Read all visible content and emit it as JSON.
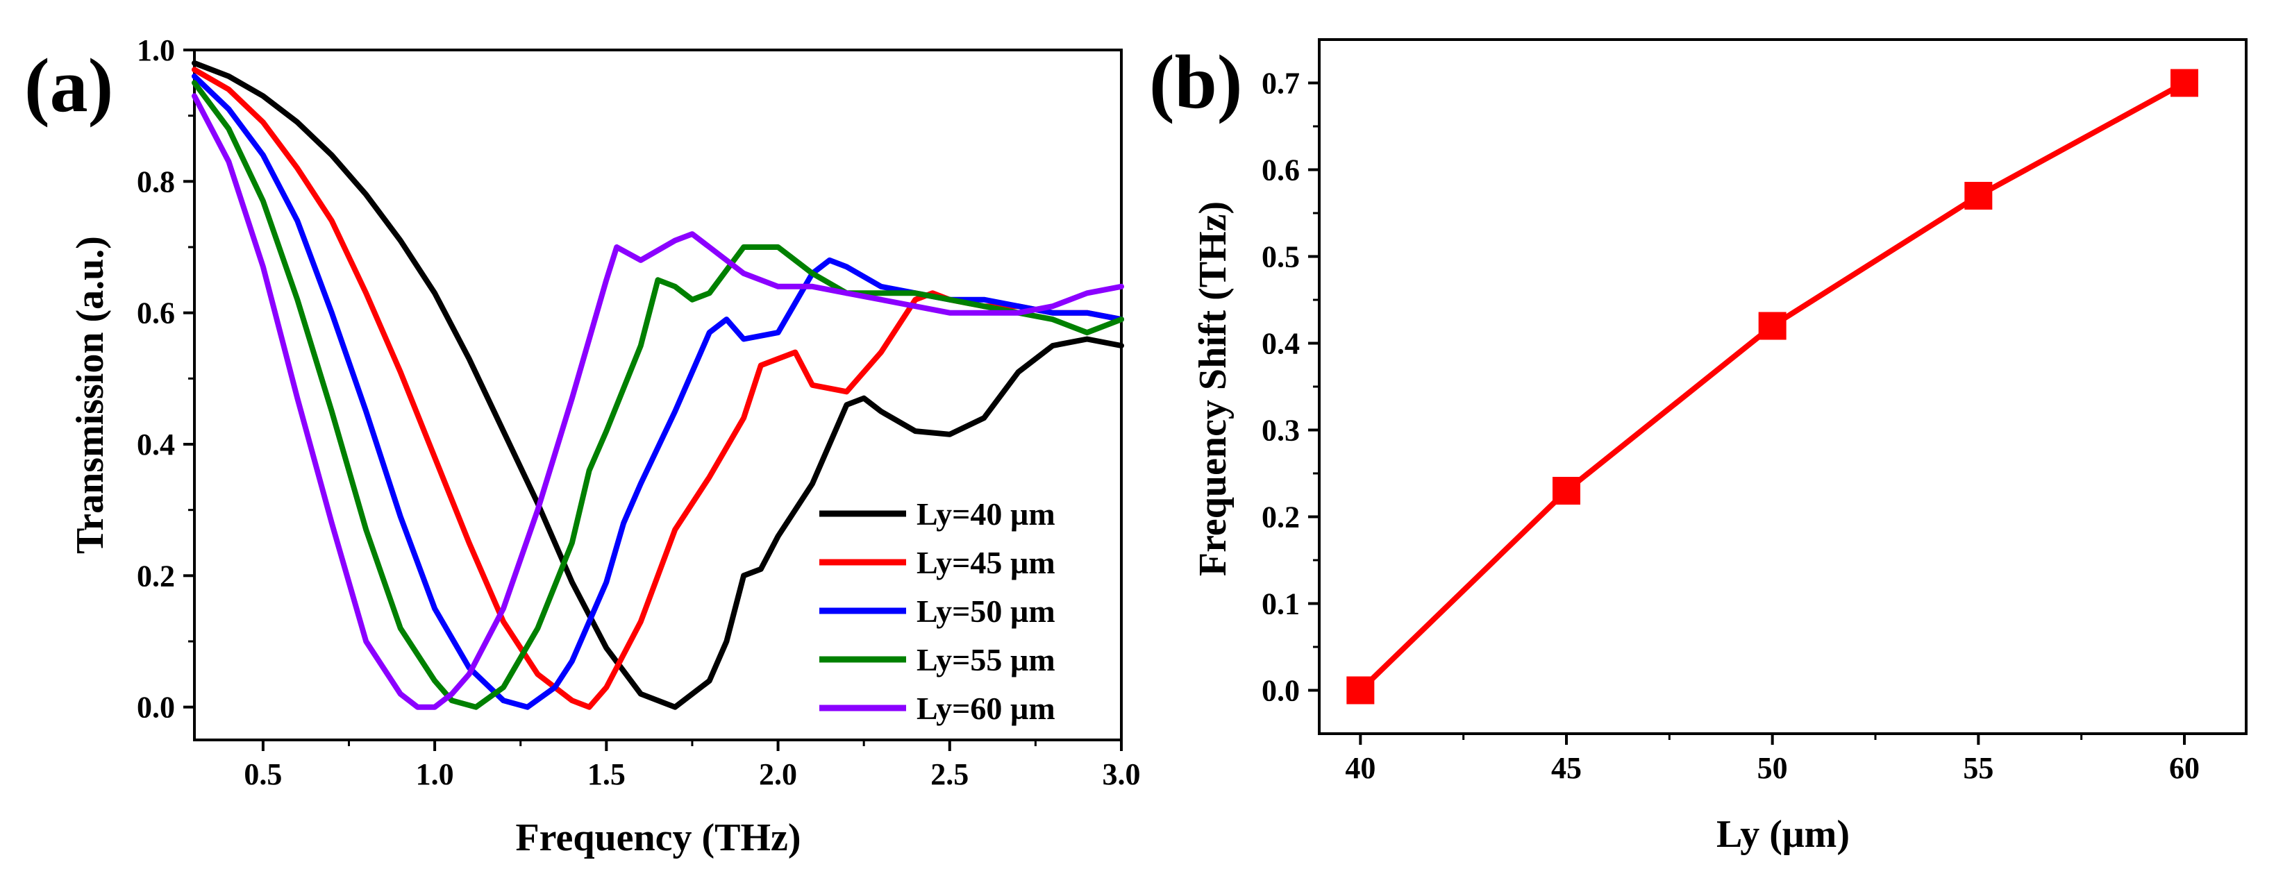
{
  "chart_data": [
    {
      "panel_label": "(a)",
      "type": "line",
      "xlabel": "Frequency (THz)",
      "ylabel": "Transmission (a.u.)",
      "xlim": [
        0.3,
        3.0
      ],
      "ylim": [
        -0.05,
        1.0
      ],
      "x_ticks": [
        0.5,
        1.0,
        1.5,
        2.0,
        2.5,
        3.0
      ],
      "x_tick_labels": [
        "0.5",
        "1.0",
        "1.5",
        "2.0",
        "2.5",
        "3.0"
      ],
      "y_ticks": [
        0.0,
        0.2,
        0.4,
        0.6,
        0.8,
        1.0
      ],
      "y_tick_labels": [
        "0.0",
        "0.2",
        "0.4",
        "0.6",
        "0.8",
        "1.0"
      ],
      "legend_position": "lower-right",
      "series": [
        {
          "name": "Ly=40 µm",
          "color": "#000000",
          "x": [
            0.3,
            0.4,
            0.5,
            0.6,
            0.7,
            0.8,
            0.9,
            1.0,
            1.1,
            1.2,
            1.3,
            1.4,
            1.5,
            1.6,
            1.7,
            1.8,
            1.85,
            1.9,
            1.95,
            2.0,
            2.1,
            2.2,
            2.25,
            2.3,
            2.4,
            2.5,
            2.6,
            2.7,
            2.8,
            2.9,
            3.0
          ],
          "y": [
            0.98,
            0.96,
            0.93,
            0.89,
            0.84,
            0.78,
            0.71,
            0.63,
            0.53,
            0.42,
            0.31,
            0.19,
            0.09,
            0.02,
            0.0,
            0.04,
            0.1,
            0.2,
            0.21,
            0.26,
            0.34,
            0.46,
            0.47,
            0.45,
            0.42,
            0.415,
            0.44,
            0.51,
            0.55,
            0.56,
            0.55
          ]
        },
        {
          "name": "Ly=45 µm",
          "color": "#ff0000",
          "x": [
            0.3,
            0.4,
            0.5,
            0.6,
            0.7,
            0.8,
            0.9,
            1.0,
            1.1,
            1.2,
            1.3,
            1.4,
            1.45,
            1.5,
            1.6,
            1.7,
            1.8,
            1.9,
            1.95,
            2.0,
            2.05,
            2.1,
            2.2,
            2.3,
            2.4,
            2.45,
            2.5,
            2.6,
            2.7,
            2.8,
            2.9,
            3.0
          ],
          "y": [
            0.97,
            0.94,
            0.89,
            0.82,
            0.74,
            0.63,
            0.51,
            0.38,
            0.25,
            0.13,
            0.05,
            0.01,
            0.0,
            0.03,
            0.13,
            0.27,
            0.35,
            0.44,
            0.52,
            0.53,
            0.54,
            0.49,
            0.48,
            0.54,
            0.62,
            0.63,
            0.62,
            0.61,
            0.61,
            0.6,
            0.6,
            0.59
          ]
        },
        {
          "name": "Ly=50 µm",
          "color": "#0000ff",
          "x": [
            0.3,
            0.4,
            0.5,
            0.6,
            0.7,
            0.8,
            0.9,
            1.0,
            1.1,
            1.2,
            1.27,
            1.35,
            1.4,
            1.5,
            1.55,
            1.6,
            1.7,
            1.8,
            1.85,
            1.9,
            2.0,
            2.1,
            2.15,
            2.2,
            2.3,
            2.4,
            2.5,
            2.6,
            2.7,
            2.8,
            2.9,
            3.0
          ],
          "y": [
            0.96,
            0.91,
            0.84,
            0.74,
            0.6,
            0.45,
            0.29,
            0.15,
            0.06,
            0.01,
            0.0,
            0.03,
            0.07,
            0.19,
            0.28,
            0.34,
            0.45,
            0.57,
            0.59,
            0.56,
            0.57,
            0.66,
            0.68,
            0.67,
            0.64,
            0.63,
            0.62,
            0.62,
            0.61,
            0.6,
            0.6,
            0.59
          ]
        },
        {
          "name": "Ly=55 µm",
          "color": "#008000",
          "x": [
            0.3,
            0.4,
            0.5,
            0.6,
            0.7,
            0.8,
            0.9,
            1.0,
            1.05,
            1.12,
            1.2,
            1.3,
            1.4,
            1.45,
            1.5,
            1.6,
            1.65,
            1.7,
            1.75,
            1.8,
            1.9,
            2.0,
            2.1,
            2.2,
            2.3,
            2.4,
            2.5,
            2.6,
            2.7,
            2.8,
            2.9,
            3.0
          ],
          "y": [
            0.95,
            0.88,
            0.77,
            0.62,
            0.45,
            0.27,
            0.12,
            0.04,
            0.01,
            0.0,
            0.03,
            0.12,
            0.25,
            0.36,
            0.42,
            0.55,
            0.65,
            0.64,
            0.62,
            0.63,
            0.7,
            0.7,
            0.66,
            0.63,
            0.63,
            0.63,
            0.62,
            0.61,
            0.6,
            0.59,
            0.57,
            0.59
          ]
        },
        {
          "name": "Ly=60 µm",
          "color": "#8b00ff",
          "x": [
            0.3,
            0.4,
            0.5,
            0.6,
            0.7,
            0.8,
            0.9,
            0.95,
            1.0,
            1.05,
            1.1,
            1.2,
            1.3,
            1.4,
            1.5,
            1.53,
            1.6,
            1.7,
            1.75,
            1.8,
            1.9,
            2.0,
            2.1,
            2.2,
            2.3,
            2.4,
            2.5,
            2.6,
            2.7,
            2.8,
            2.9,
            3.0
          ],
          "y": [
            0.93,
            0.83,
            0.67,
            0.47,
            0.28,
            0.1,
            0.02,
            0.0,
            0.0,
            0.02,
            0.05,
            0.15,
            0.3,
            0.47,
            0.65,
            0.7,
            0.68,
            0.71,
            0.72,
            0.7,
            0.66,
            0.64,
            0.64,
            0.63,
            0.62,
            0.61,
            0.6,
            0.6,
            0.6,
            0.61,
            0.63,
            0.64
          ]
        }
      ]
    },
    {
      "panel_label": "(b)",
      "type": "line",
      "xlabel": "Ly (μm)",
      "ylabel": "Frequency Shift (THz)",
      "xlim": [
        39.0,
        61.5
      ],
      "ylim": [
        -0.05,
        0.75
      ],
      "x_ticks": [
        40,
        45,
        50,
        55,
        60
      ],
      "x_tick_labels": [
        "40",
        "45",
        "50",
        "55",
        "60"
      ],
      "y_ticks": [
        0.0,
        0.1,
        0.2,
        0.3,
        0.4,
        0.5,
        0.6,
        0.7
      ],
      "y_tick_labels": [
        "0.0",
        "0.1",
        "0.2",
        "0.3",
        "0.4",
        "0.5",
        "0.6",
        "0.7"
      ],
      "series": [
        {
          "name": "Frequency Shift",
          "color": "#ff0000",
          "marker": "square",
          "x": [
            40,
            45,
            50,
            55,
            60
          ],
          "y": [
            0.0,
            0.23,
            0.42,
            0.57,
            0.7
          ]
        }
      ]
    }
  ]
}
